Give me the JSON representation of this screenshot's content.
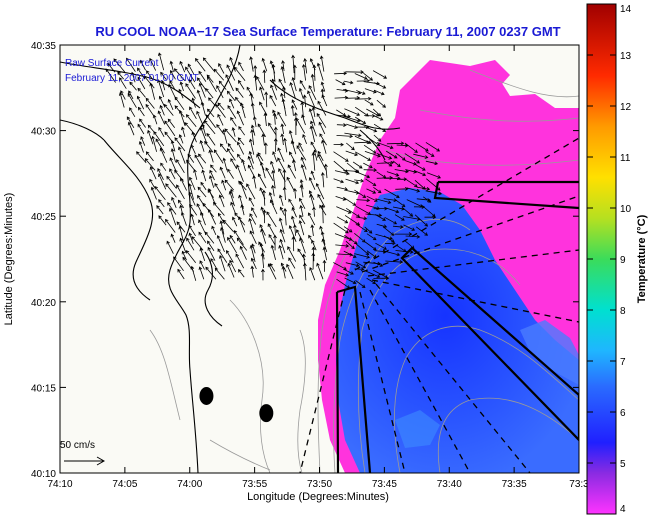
{
  "chart_data": {
    "type": "heatmap",
    "title": "RU COOL  NOAA−17  Sea Surface Temperature:  February 11, 2007 0237 GMT",
    "annotation_lines": [
      "Raw Surface Current",
      "February 11, 2007 01:00 GMT"
    ],
    "scale_label": "50 cm/s",
    "xlabel": "Longitude (Degrees:Minutes)",
    "ylabel": "Latitude (Degrees:Minutes)",
    "x_ticks": [
      "74:10",
      "74:05",
      "74:00",
      "73:55",
      "73:50",
      "73:45",
      "73:40",
      "73:35",
      "73:3"
    ],
    "y_ticks": [
      "40:35",
      "40:30",
      "40:25",
      "40:20",
      "40:15",
      "40:10"
    ],
    "xlim": [
      -74.1667,
      -73.5167
    ],
    "ylim": [
      40.1667,
      40.5833
    ],
    "colorbar": {
      "label": "Temperature (°C)",
      "min": 4,
      "max": 14,
      "ticks": [
        "14",
        "13",
        "12",
        "11",
        "10",
        "9",
        "8",
        "7",
        "6",
        "5",
        "4"
      ]
    },
    "colors": {
      "title": "#1a1ad4",
      "land": "#fafaf5",
      "warm_water": "#ff33dd",
      "cold_water": "#1e3cff",
      "mid_water": "#3a6cff"
    },
    "markers": [
      {
        "lon": -73.9833,
        "lat": 40.2417
      },
      {
        "lon": -73.9083,
        "lat": 40.225
      }
    ]
  }
}
